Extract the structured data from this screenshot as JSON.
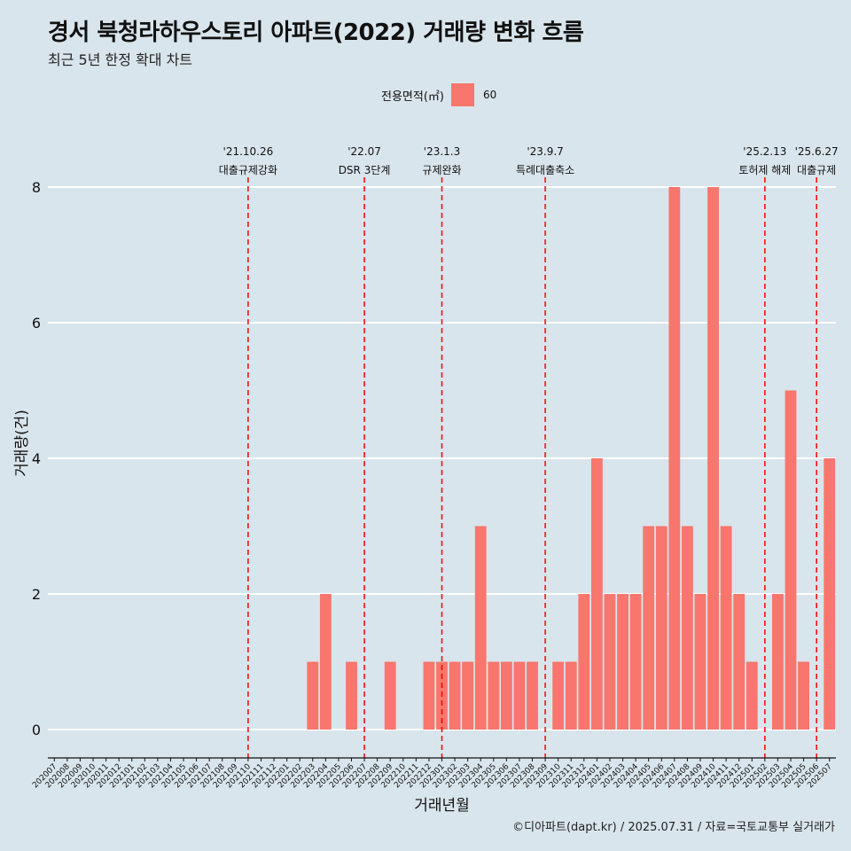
{
  "header": {
    "title": "경서 북청라하우스토리 아파트(2022) 거래량 변화 흐름",
    "subtitle": "최근 5년 한정 확대 차트"
  },
  "legend": {
    "title": "전용면적(㎡)",
    "item": "60",
    "color": "#f8766d"
  },
  "caption": "©디아파트(dapt.kr) / 2025.07.31 / 자료=국토교통부 실거래가",
  "colors": {
    "background": "#d9e5ec",
    "bar": "#f8766d",
    "grid": "#ffffff",
    "event_line": "#ff0000"
  },
  "chart_data": {
    "type": "bar",
    "xlabel": "거래년월",
    "ylabel": "거래량(건)",
    "ylim": [
      0,
      8.4
    ],
    "yticks": [
      0,
      2,
      4,
      6,
      8
    ],
    "grid": true,
    "legend_position": "top",
    "categories": [
      "202007",
      "202008",
      "202009",
      "202010",
      "202011",
      "202012",
      "202101",
      "202102",
      "202103",
      "202104",
      "202105",
      "202106",
      "202107",
      "202108",
      "202109",
      "202110",
      "202111",
      "202112",
      "202201",
      "202202",
      "202203",
      "202204",
      "202205",
      "202206",
      "202207",
      "202208",
      "202209",
      "202210",
      "202211",
      "202212",
      "202301",
      "202302",
      "202303",
      "202304",
      "202305",
      "202306",
      "202307",
      "202308",
      "202309",
      "202310",
      "202311",
      "202312",
      "202401",
      "202402",
      "202403",
      "202404",
      "202405",
      "202406",
      "202407",
      "202408",
      "202409",
      "202410",
      "202411",
      "202412",
      "202501",
      "202502",
      "202503",
      "202504",
      "202505",
      "202506",
      "202507"
    ],
    "series": [
      {
        "name": "60",
        "values": [
          0,
          0,
          0,
          0,
          0,
          0,
          0,
          0,
          0,
          0,
          0,
          0,
          0,
          0,
          0,
          0,
          0,
          0,
          0,
          0,
          1,
          2,
          0,
          1,
          0,
          0,
          1,
          0,
          0,
          1,
          1,
          1,
          1,
          3,
          1,
          1,
          1,
          1,
          0,
          1,
          1,
          2,
          4,
          2,
          2,
          2,
          3,
          3,
          8,
          3,
          2,
          8,
          3,
          2,
          1,
          0,
          2,
          5,
          1,
          0,
          4
        ]
      }
    ],
    "annotations": [
      {
        "date": "'21.10.26",
        "label": "대출규제강화",
        "category": "202110"
      },
      {
        "date": "'22.07",
        "label": "DSR 3단계",
        "category": "202207"
      },
      {
        "date": "'23.1.3",
        "label": "규제완화",
        "category": "202301"
      },
      {
        "date": "'23.9.7",
        "label": "특례대출축소",
        "category": "202309"
      },
      {
        "date": "'25.2.13",
        "label": "토허제 해제",
        "category": "202502"
      },
      {
        "date": "'25.6.27",
        "label": "대출규제",
        "category": "202506"
      }
    ]
  }
}
